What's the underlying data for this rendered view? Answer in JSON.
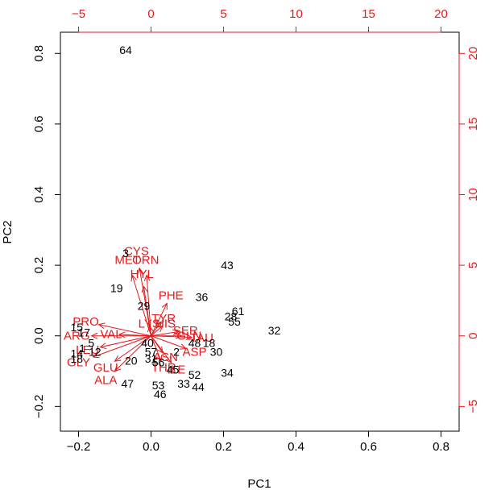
{
  "chart_data": {
    "type": "scatter",
    "subtype": "biplot",
    "title": "",
    "xlabel": "PC1",
    "ylabel": "PC2",
    "xlim": [
      -0.25,
      0.85
    ],
    "ylim": [
      -0.27,
      0.86
    ],
    "xticks": [
      -0.2,
      0.0,
      0.2,
      0.4,
      0.6,
      0.8
    ],
    "yticks": [
      -0.2,
      0.0,
      0.2,
      0.4,
      0.6,
      0.8
    ],
    "xticklabels": [
      "−0.2",
      "0.0",
      "0.2",
      "0.4",
      "0.6",
      "0.8"
    ],
    "yticklabels": [
      "−0.2",
      "0.0",
      "0.2",
      "0.4",
      "0.6",
      "0.8"
    ],
    "top_axis": {
      "ticks": [
        -5,
        0,
        5,
        10,
        15,
        20
      ],
      "labels": [
        "−5",
        "0",
        "5",
        "10",
        "15",
        "20"
      ],
      "color": "#e41a1c"
    },
    "right_axis": {
      "ticks": [
        -5,
        0,
        5,
        10,
        15,
        20
      ],
      "labels": [
        "−5",
        "0",
        "5",
        "10",
        "15",
        "20"
      ],
      "color": "#e41a1c"
    },
    "arrow_origin": [
      0,
      0
    ],
    "observations": [
      {
        "label": "64",
        "x": -0.07,
        "y": 0.81
      },
      {
        "label": "43",
        "x": 0.21,
        "y": 0.2
      },
      {
        "label": "3",
        "x": -0.07,
        "y": 0.235
      },
      {
        "label": "19",
        "x": -0.095,
        "y": 0.135
      },
      {
        "label": "36",
        "x": 0.14,
        "y": 0.11
      },
      {
        "label": "29",
        "x": -0.02,
        "y": 0.085
      },
      {
        "label": "61",
        "x": 0.24,
        "y": 0.07
      },
      {
        "label": "28",
        "x": 0.22,
        "y": 0.055
      },
      {
        "label": "55",
        "x": 0.23,
        "y": 0.04
      },
      {
        "label": "32",
        "x": 0.34,
        "y": 0.015
      },
      {
        "label": "15",
        "x": -0.205,
        "y": 0.025
      },
      {
        "label": "17",
        "x": -0.185,
        "y": 0.01
      },
      {
        "label": "5",
        "x": -0.165,
        "y": -0.02
      },
      {
        "label": "40",
        "x": -0.01,
        "y": -0.02
      },
      {
        "label": "1",
        "x": -0.19,
        "y": -0.035
      },
      {
        "label": "12",
        "x": -0.155,
        "y": -0.045
      },
      {
        "label": "14",
        "x": -0.205,
        "y": -0.05
      },
      {
        "label": "18",
        "x": -0.205,
        "y": -0.065
      },
      {
        "label": "20",
        "x": -0.055,
        "y": -0.07
      },
      {
        "label": "57",
        "x": 0.0,
        "y": -0.045
      },
      {
        "label": "31",
        "x": 0.0,
        "y": -0.065
      },
      {
        "label": "56",
        "x": 0.02,
        "y": -0.075
      },
      {
        "label": "2",
        "x": 0.07,
        "y": -0.045
      },
      {
        "label": "48",
        "x": 0.12,
        "y": -0.02
      },
      {
        "label": "18",
        "x": 0.16,
        "y": -0.02
      },
      {
        "label": "30",
        "x": 0.18,
        "y": -0.045
      },
      {
        "label": "45",
        "x": 0.06,
        "y": -0.095
      },
      {
        "label": "52",
        "x": 0.12,
        "y": -0.11
      },
      {
        "label": "34",
        "x": 0.21,
        "y": -0.105
      },
      {
        "label": "33",
        "x": 0.09,
        "y": -0.135
      },
      {
        "label": "44",
        "x": 0.13,
        "y": -0.145
      },
      {
        "label": "47",
        "x": -0.065,
        "y": -0.135
      },
      {
        "label": "53",
        "x": 0.02,
        "y": -0.14
      },
      {
        "label": "46",
        "x": 0.025,
        "y": -0.165
      }
    ],
    "variables": [
      {
        "label": "CYS",
        "x": -0.04,
        "y": 0.24
      },
      {
        "label": "MET",
        "x": -0.065,
        "y": 0.215
      },
      {
        "label": "ORN",
        "x": -0.015,
        "y": 0.215
      },
      {
        "label": "HYL",
        "x": -0.025,
        "y": 0.175
      },
      {
        "label": "PHE",
        "x": 0.055,
        "y": 0.115
      },
      {
        "label": "TYR",
        "x": 0.035,
        "y": 0.05
      },
      {
        "label": "LYS",
        "x": -0.005,
        "y": 0.035
      },
      {
        "label": "HIS",
        "x": 0.04,
        "y": 0.035
      },
      {
        "label": "SER",
        "x": 0.095,
        "y": 0.015
      },
      {
        "label": "GLN",
        "x": 0.105,
        "y": 0.0
      },
      {
        "label": "PRO",
        "x": -0.18,
        "y": 0.04
      },
      {
        "label": "ARG",
        "x": -0.205,
        "y": 0.0
      },
      {
        "label": "VAL",
        "x": -0.11,
        "y": 0.005
      },
      {
        "label": "LEU",
        "x": -0.175,
        "y": -0.04
      },
      {
        "label": "GLY",
        "x": -0.2,
        "y": -0.075
      },
      {
        "label": "GLU",
        "x": -0.125,
        "y": -0.09
      },
      {
        "label": "ALA",
        "x": -0.125,
        "y": -0.125
      },
      {
        "label": "ASN",
        "x": 0.04,
        "y": -0.06
      },
      {
        "label": "THR",
        "x": 0.035,
        "y": -0.09
      },
      {
        "label": "ILE",
        "x": 0.07,
        "y": -0.095
      },
      {
        "label": "ASP",
        "x": 0.12,
        "y": -0.045
      },
      {
        "label": "TAU",
        "x": 0.14,
        "y": -0.005
      }
    ]
  }
}
